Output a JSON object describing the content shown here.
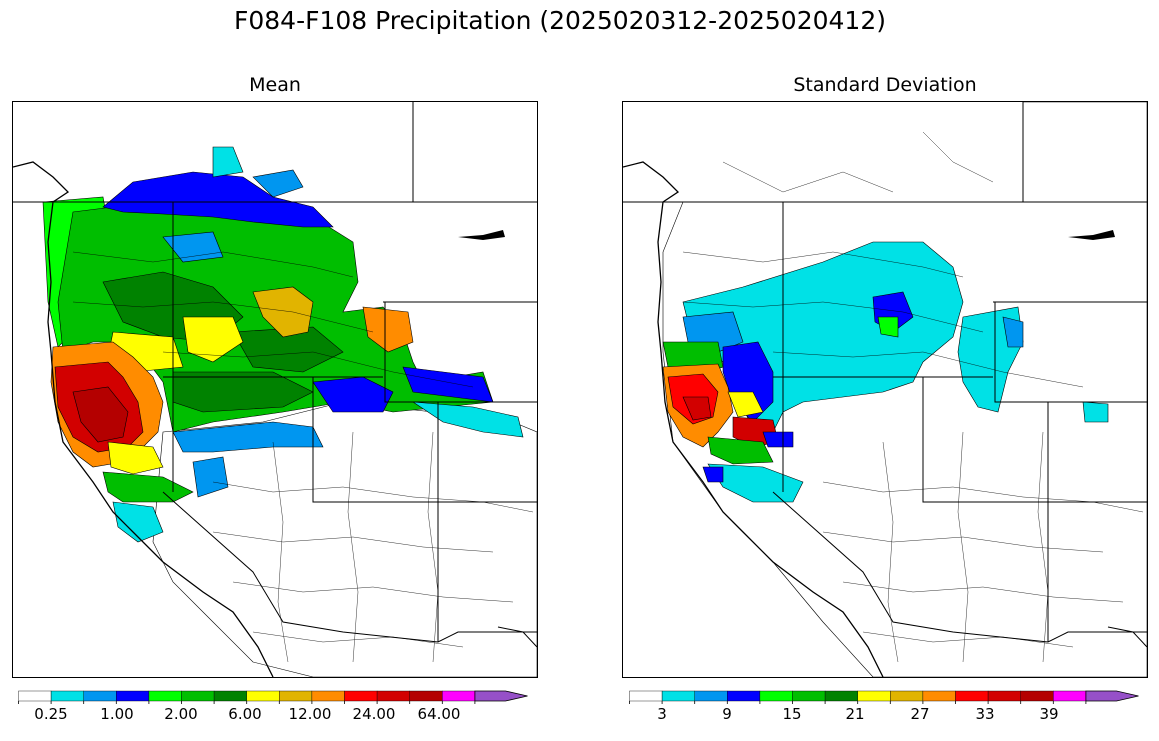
{
  "figure": {
    "title": "F084-F108 Precipitation (2025020312-2025020412)"
  },
  "panels": [
    {
      "title": "Mean",
      "colorbar": {
        "colors": [
          "#ffffff",
          "#00e1e6",
          "#0096f0",
          "#0000ff",
          "#00ff00",
          "#00be00",
          "#008200",
          "#ffff00",
          "#e1b400",
          "#ff8c00",
          "#ff0000",
          "#d20000",
          "#b40000",
          "#ff00ff",
          "#9650c8"
        ],
        "tick_labels": [
          "0.25",
          "1.00",
          "2.00",
          "6.00",
          "12.00",
          "24.00",
          "64.00"
        ],
        "extend": "max"
      }
    },
    {
      "title": "Standard Deviation",
      "colorbar": {
        "colors": [
          "#ffffff",
          "#00e1e6",
          "#0096f0",
          "#0000ff",
          "#00ff00",
          "#00be00",
          "#008200",
          "#ffff00",
          "#e1b400",
          "#ff8c00",
          "#ff0000",
          "#d20000",
          "#b40000",
          "#ff00ff",
          "#9650c8"
        ],
        "tick_labels": [
          "3",
          "9",
          "15",
          "21",
          "27",
          "33",
          "39"
        ],
        "extend": "max"
      }
    }
  ]
}
